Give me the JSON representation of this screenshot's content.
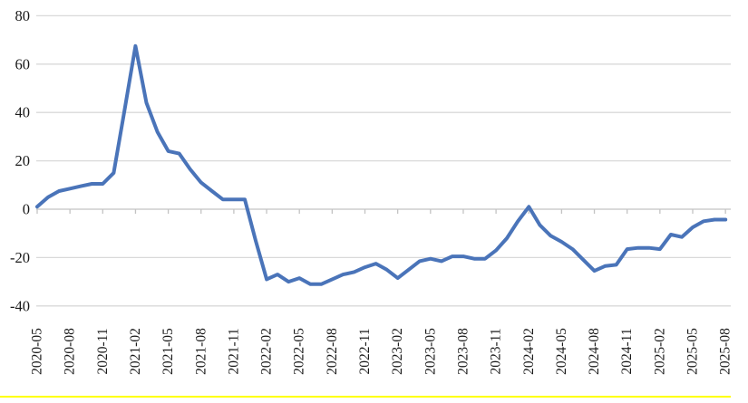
{
  "page": {
    "background": "#FFFFFF",
    "divider_color": "#FFFF00"
  },
  "chart_data": {
    "type": "line",
    "title": "",
    "xlabel": "",
    "ylabel": "",
    "x": [
      "2020-05",
      "2020-06",
      "2020-07",
      "2020-08",
      "2020-09",
      "2020-10",
      "2020-11",
      "2020-12",
      "2021-01",
      "2021-02",
      "2021-03",
      "2021-04",
      "2021-05",
      "2021-06",
      "2021-07",
      "2021-08",
      "2021-09",
      "2021-10",
      "2021-11",
      "2021-12",
      "2022-01",
      "2022-02",
      "2022-03",
      "2022-04",
      "2022-05",
      "2022-06",
      "2022-07",
      "2022-08",
      "2022-09",
      "2022-10",
      "2022-11",
      "2022-12",
      "2023-01",
      "2023-02",
      "2023-03",
      "2023-04",
      "2023-05",
      "2023-06",
      "2023-07",
      "2023-08",
      "2023-09",
      "2023-10",
      "2023-11",
      "2023-12",
      "2024-01",
      "2024-02",
      "2024-03",
      "2024-04",
      "2024-05",
      "2024-06",
      "2024-07",
      "2024-08",
      "2024-09",
      "2024-10",
      "2024-11",
      "2024-12",
      "2025-01",
      "2025-02",
      "2025-03",
      "2025-04",
      "2025-05",
      "2025-06",
      "2025-07",
      "2025-08"
    ],
    "values": [
      1,
      5,
      7.5,
      8.5,
      9.5,
      10.5,
      10.5,
      15,
      41,
      67.5,
      44,
      32,
      24,
      23,
      16.5,
      11,
      7.5,
      4,
      4,
      4,
      -13,
      -29,
      -27,
      -30,
      -28.5,
      -31,
      -31,
      -29,
      -27,
      -26,
      -24,
      -22.5,
      -25,
      -28.5,
      -25,
      -21.5,
      -20.5,
      -21.5,
      -19.5,
      -19.5,
      -20.5,
      -20.5,
      -17,
      -12,
      -5,
      1,
      -6.5,
      -11,
      -13.5,
      -16.5,
      -21,
      -25.5,
      -23.5,
      -23,
      -16.5,
      -16,
      -16,
      -16.5,
      -10.5,
      -11.5,
      -7.5,
      -5,
      -4.3,
      -4.3
    ],
    "x_tick_labels": [
      "2020-05",
      "2020-08",
      "2020-11",
      "2021-02",
      "2021-05",
      "2021-08",
      "2021-11",
      "2022-02",
      "2022-05",
      "2022-08",
      "2022-11",
      "2023-02",
      "2023-05",
      "2023-08",
      "2023-11",
      "2024-02",
      "2024-05",
      "2024-08",
      "2024-11",
      "2025-02",
      "2025-05",
      "2025-08"
    ],
    "x_tick_every_n_points": 3,
    "y_ticks": [
      80,
      60,
      40,
      20,
      0,
      -20,
      -40
    ],
    "ylim": [
      -40,
      80
    ],
    "grid": "horizontal",
    "legend_position": "none",
    "x_label_rotation_deg": -90,
    "line_color": "#4A74B9",
    "gridline_color": "#D9D9D9",
    "axis_line_color": "#C3C3C3",
    "label_color": "#1A1A1A"
  }
}
